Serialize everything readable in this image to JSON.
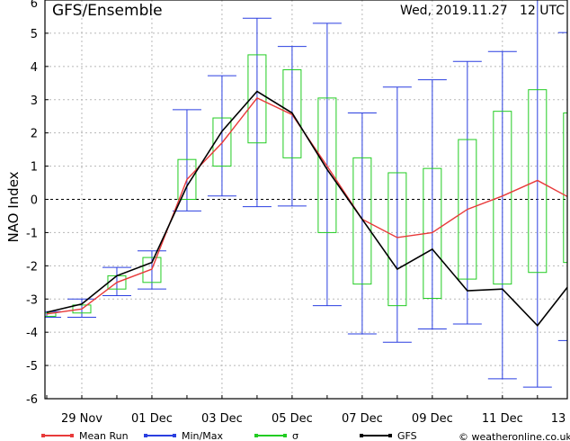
{
  "chart_data": {
    "type": "line",
    "title": "GFS/Ensemble",
    "subtitle": "Wed, 2019.11.27   12 UTC",
    "xlabel": "",
    "ylabel": "NAO Index",
    "ylim": [
      -6,
      6
    ],
    "yticks": [
      -6,
      -5,
      -4,
      -3,
      -2,
      -1,
      0,
      1,
      2,
      3,
      4,
      5,
      6
    ],
    "xlim": [
      0,
      14.8
    ],
    "xtick_labels": [
      {
        "x": 1,
        "label": "29 Nov"
      },
      {
        "x": 3,
        "label": "01 Dec"
      },
      {
        "x": 5,
        "label": "03 Dec"
      },
      {
        "x": 7,
        "label": "05 Dec"
      },
      {
        "x": 9,
        "label": "07 Dec"
      },
      {
        "x": 11,
        "label": "09 Dec"
      },
      {
        "x": 13,
        "label": "11 Dec"
      },
      {
        "x": 14.75,
        "label": "13"
      }
    ],
    "grid": true,
    "zero_line": "dashed",
    "colors": {
      "mean": "#e83a3a",
      "minmax": "#2a3fe0",
      "sigma": "#22cc22",
      "gfs": "#000000"
    },
    "time_steps": [
      0,
      1,
      2,
      3,
      4,
      5,
      6,
      7,
      8,
      9,
      10,
      11,
      12,
      13,
      14,
      15
    ],
    "series": [
      {
        "name": "Mean Run",
        "values": [
          -3.45,
          -3.3,
          -2.5,
          -2.1,
          0.6,
          1.7,
          3.05,
          2.55,
          1.0,
          -0.6,
          -1.15,
          -1.0,
          -0.3,
          0.1,
          0.57,
          0.0
        ]
      },
      {
        "name": "GFS",
        "values": [
          -3.4,
          -3.15,
          -2.3,
          -1.9,
          0.4,
          2.05,
          3.25,
          2.6,
          0.9,
          -0.6,
          -2.1,
          -1.5,
          -2.75,
          -2.7,
          -3.8,
          -2.45
        ]
      }
    ],
    "minmax": [
      {
        "min": -3.55,
        "max": -3.38
      },
      {
        "min": -3.55,
        "max": -3.0
      },
      {
        "min": -2.9,
        "max": -2.05
      },
      {
        "min": -2.7,
        "max": -1.55
      },
      {
        "min": -0.35,
        "max": 2.7
      },
      {
        "min": 0.1,
        "max": 3.72
      },
      {
        "min": -0.22,
        "max": 5.45
      },
      {
        "min": -0.2,
        "max": 4.6
      },
      {
        "min": -3.2,
        "max": 5.3
      },
      {
        "min": -4.05,
        "max": 2.6
      },
      {
        "min": -4.3,
        "max": 3.38
      },
      {
        "min": -3.9,
        "max": 3.6
      },
      {
        "min": -3.75,
        "max": 4.15
      },
      {
        "min": -5.4,
        "max": 4.45
      },
      {
        "min": -5.65,
        "max": 6.0
      },
      {
        "min": -4.25,
        "max": 5.02
      }
    ],
    "sigma": [
      {
        "low": -3.52,
        "high": -3.42
      },
      {
        "low": -3.42,
        "high": -3.18
      },
      {
        "low": -2.7,
        "high": -2.3
      },
      {
        "low": -2.5,
        "high": -1.75
      },
      {
        "low": 0.0,
        "high": 1.2
      },
      {
        "low": 1.0,
        "high": 2.45
      },
      {
        "low": 1.7,
        "high": 4.35
      },
      {
        "low": 1.25,
        "high": 3.9
      },
      {
        "low": -1.0,
        "high": 3.05
      },
      {
        "low": -2.55,
        "high": 1.25
      },
      {
        "low": -3.2,
        "high": 0.8
      },
      {
        "low": -2.98,
        "high": 0.93
      },
      {
        "low": -2.4,
        "high": 1.8
      },
      {
        "low": -2.55,
        "high": 2.65
      },
      {
        "low": -2.2,
        "high": 3.3
      },
      {
        "low": -1.9,
        "high": 2.6
      }
    ]
  },
  "legend": [
    {
      "label": "Mean Run",
      "color": "#e83a3a",
      "key": "mean"
    },
    {
      "label": "Min/Max",
      "color": "#2a3fe0",
      "key": "minmax"
    },
    {
      "label": "σ",
      "color": "#22cc22",
      "key": "sigma"
    },
    {
      "label": "GFS",
      "color": "#000000",
      "key": "gfs"
    }
  ],
  "credit": "© weatheronline.co.uk"
}
